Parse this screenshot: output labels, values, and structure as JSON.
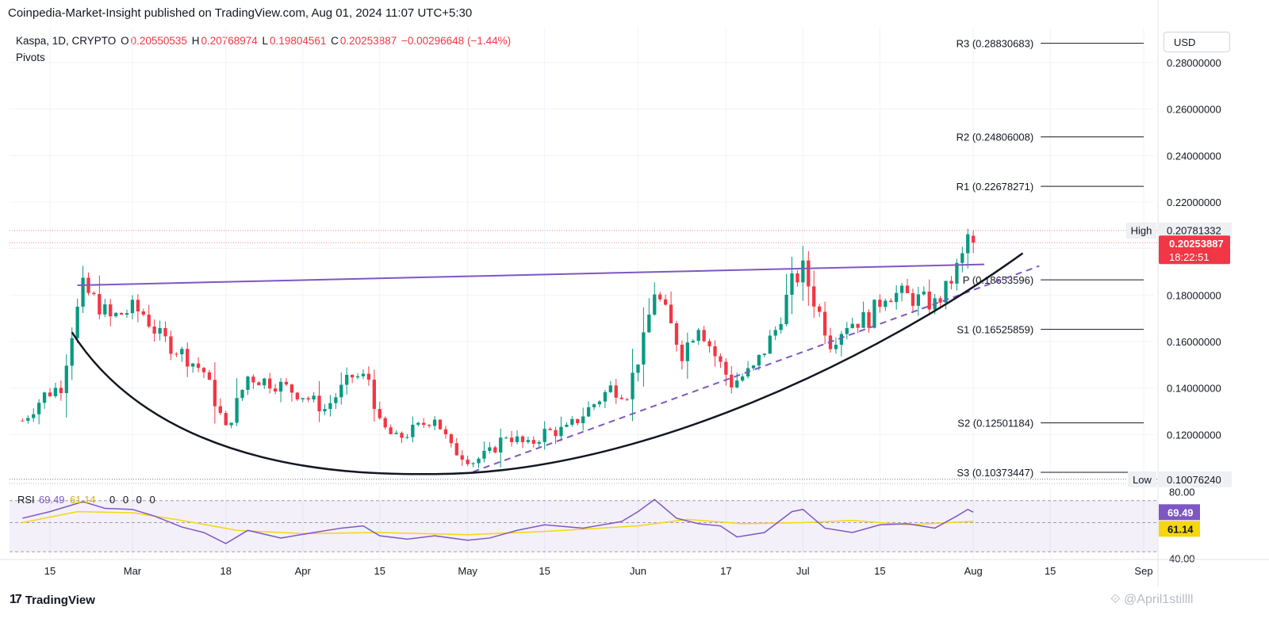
{
  "header": {
    "publisher_line": "Coinpedia-Market-Insight published on TradingView.com, Aug 01, 2024 11:07 UTC+5:30",
    "symbol": "Kaspa, 1D, CRYPTO",
    "ohlc": {
      "o_label": "O",
      "o_value": "0.20550535",
      "h_label": "H",
      "h_value": "0.20768974",
      "l_label": "L",
      "l_value": "0.19804561",
      "c_label": "C",
      "c_value": "0.20253887",
      "change": "−0.00296648 (−1.44%)"
    },
    "indicator": "Pivots",
    "currency": "USD"
  },
  "colors": {
    "up": "#089981",
    "down": "#f23645",
    "pivot_lines": "#131722",
    "channel": "#7e57c2",
    "curve": "#131722",
    "rsi": "#7e57c2",
    "rsi_ma": "#f5d60f",
    "price_badge": "#f23645"
  },
  "chart_data": {
    "type": "candlestick",
    "title": "Kaspa, 1D, CRYPTO",
    "ylim": [
      0.1,
      0.295
    ],
    "y_ticks": [
      "0.28000000",
      "0.26000000",
      "0.24000000",
      "0.22000000",
      "0.18000000",
      "0.16000000",
      "0.14000000",
      "0.12000000"
    ],
    "x_ticks": [
      "15",
      "Mar",
      "18",
      "Apr",
      "15",
      "May",
      "15",
      "Jun",
      "17",
      "Jul",
      "15",
      "Aug",
      "15",
      "Sep"
    ],
    "x_tick_dates": [
      "2024-02-15",
      "2024-03-01",
      "2024-03-18",
      "2024-04-01",
      "2024-04-15",
      "2024-05-01",
      "2024-05-15",
      "2024-06-01",
      "2024-06-17",
      "2024-07-01",
      "2024-07-15",
      "2024-08-01",
      "2024-08-15",
      "2024-09-01"
    ],
    "start_date": "2024-02-10",
    "end_date": "2024-08-01",
    "close_path": [
      [
        "2024-02-10",
        0.126
      ],
      [
        "2024-02-14",
        0.137
      ],
      [
        "2024-02-17",
        0.141
      ],
      [
        "2024-02-19",
        0.164
      ],
      [
        "2024-02-21",
        0.183
      ],
      [
        "2024-02-23",
        0.178
      ],
      [
        "2024-02-26",
        0.17
      ],
      [
        "2024-03-01",
        0.174
      ],
      [
        "2024-03-03",
        0.172
      ],
      [
        "2024-03-06",
        0.162
      ],
      [
        "2024-03-10",
        0.155
      ],
      [
        "2024-03-14",
        0.147
      ],
      [
        "2024-03-18",
        0.122
      ],
      [
        "2024-03-22",
        0.145
      ],
      [
        "2024-03-27",
        0.142
      ],
      [
        "2024-04-01",
        0.137
      ],
      [
        "2024-04-05",
        0.131
      ],
      [
        "2024-04-10",
        0.145
      ],
      [
        "2024-04-13",
        0.144
      ],
      [
        "2024-04-15",
        0.124
      ],
      [
        "2024-04-18",
        0.118
      ],
      [
        "2024-04-22",
        0.123
      ],
      [
        "2024-04-25",
        0.128
      ],
      [
        "2024-04-28",
        0.114
      ],
      [
        "2024-05-02",
        0.1085
      ],
      [
        "2024-05-05",
        0.112
      ],
      [
        "2024-05-08",
        0.12
      ],
      [
        "2024-05-12",
        0.115
      ],
      [
        "2024-05-15",
        0.121
      ],
      [
        "2024-05-19",
        0.122
      ],
      [
        "2024-05-23",
        0.131
      ],
      [
        "2024-05-27",
        0.14
      ],
      [
        "2024-05-30",
        0.138
      ],
      [
        "2024-06-02",
        0.16
      ],
      [
        "2024-06-04",
        0.182
      ],
      [
        "2024-06-06",
        0.172
      ],
      [
        "2024-06-09",
        0.155
      ],
      [
        "2024-06-12",
        0.168
      ],
      [
        "2024-06-15",
        0.154
      ],
      [
        "2024-06-18",
        0.142
      ],
      [
        "2024-06-22",
        0.148
      ],
      [
        "2024-06-26",
        0.165
      ],
      [
        "2024-06-29",
        0.185
      ],
      [
        "2024-07-01",
        0.191
      ],
      [
        "2024-07-03",
        0.178
      ],
      [
        "2024-07-06",
        0.16
      ],
      [
        "2024-07-09",
        0.168
      ],
      [
        "2024-07-13",
        0.17
      ],
      [
        "2024-07-16",
        0.181
      ],
      [
        "2024-07-19",
        0.18
      ],
      [
        "2024-07-22",
        0.178
      ],
      [
        "2024-07-25",
        0.176
      ],
      [
        "2024-07-27",
        0.182
      ],
      [
        "2024-07-30",
        0.196
      ],
      [
        "2024-07-31",
        0.2055
      ],
      [
        "2024-08-01",
        0.2025
      ]
    ],
    "last_candle": {
      "date": "2024-08-01",
      "open": 0.20550535,
      "high": 0.20768974,
      "low": 0.19804561,
      "close": 0.20253887
    },
    "pivots": [
      {
        "label": "R3 (0.28830683)",
        "value": 0.28830683
      },
      {
        "label": "R2 (0.24806008)",
        "value": 0.24806008
      },
      {
        "label": "R1 (0.22678271)",
        "value": 0.22678271
      },
      {
        "label": "P (0.18653596)",
        "value": 0.18653596
      },
      {
        "label": "S1 (0.16525859)",
        "value": 0.16525859
      },
      {
        "label": "S2 (0.12501184)",
        "value": 0.12501184
      },
      {
        "label": "S3 (0.10373447)",
        "value": 0.10373447
      }
    ],
    "pivots_start_date": "2024-08-01",
    "high_marker": {
      "label": "High",
      "value": 0.20781332,
      "value_label": "0.20781332"
    },
    "low_marker": {
      "label": "Low",
      "value": 0.1007624,
      "value_label": "0.10076240"
    },
    "last_price": {
      "value": 0.20253887,
      "label": "0.20253887",
      "countdown": "18:22:51"
    },
    "resistance_line": {
      "from": [
        "2024-02-20",
        0.1842
      ],
      "to": [
        "2024-08-03",
        0.1932
      ]
    },
    "support_line_dashed": {
      "from": [
        "2024-05-02",
        0.104
      ],
      "to": [
        "2024-08-13",
        0.1925
      ]
    },
    "cup_curve": {
      "from": [
        "2024-02-19",
        0.164
      ],
      "bottom": [
        "2024-04-25",
        0.103
      ],
      "to": [
        "2024-08-10",
        0.198
      ]
    },
    "rsi": {
      "label": "RSI",
      "value": 69.49,
      "value_label": "69.49",
      "ma": 61.14,
      "ma_label": "61.14",
      "zeros": "0 0 0 0",
      "levels": [
        80,
        60,
        40
      ],
      "level_labels": [
        "80.00",
        "40.00"
      ],
      "ylim": [
        33,
        87
      ],
      "path": [
        [
          "2024-02-10",
          64
        ],
        [
          "2024-02-15",
          70
        ],
        [
          "2024-02-19",
          76
        ],
        [
          "2024-02-21",
          79
        ],
        [
          "2024-02-25",
          73
        ],
        [
          "2024-03-01",
          72
        ],
        [
          "2024-03-05",
          66
        ],
        [
          "2024-03-10",
          56
        ],
        [
          "2024-03-14",
          51
        ],
        [
          "2024-03-18",
          41
        ],
        [
          "2024-03-22",
          53
        ],
        [
          "2024-03-28",
          46
        ],
        [
          "2024-04-03",
          51
        ],
        [
          "2024-04-08",
          55
        ],
        [
          "2024-04-12",
          57
        ],
        [
          "2024-04-15",
          48
        ],
        [
          "2024-04-20",
          45
        ],
        [
          "2024-04-25",
          48
        ],
        [
          "2024-05-01",
          44
        ],
        [
          "2024-05-05",
          46
        ],
        [
          "2024-05-10",
          53
        ],
        [
          "2024-05-15",
          58
        ],
        [
          "2024-05-22",
          55
        ],
        [
          "2024-05-29",
          61
        ],
        [
          "2024-06-01",
          70
        ],
        [
          "2024-06-04",
          81
        ],
        [
          "2024-06-08",
          64
        ],
        [
          "2024-06-12",
          59
        ],
        [
          "2024-06-16",
          57
        ],
        [
          "2024-06-19",
          47
        ],
        [
          "2024-06-24",
          51
        ],
        [
          "2024-06-29",
          70
        ],
        [
          "2024-07-01",
          72
        ],
        [
          "2024-07-05",
          55
        ],
        [
          "2024-07-10",
          51
        ],
        [
          "2024-07-15",
          58
        ],
        [
          "2024-07-20",
          59
        ],
        [
          "2024-07-25",
          55
        ],
        [
          "2024-07-29",
          66
        ],
        [
          "2024-07-31",
          72
        ],
        [
          "2024-08-01",
          69.49
        ]
      ],
      "ma_path": [
        [
          "2024-02-10",
          60
        ],
        [
          "2024-02-20",
          70
        ],
        [
          "2024-03-01",
          69
        ],
        [
          "2024-03-10",
          62
        ],
        [
          "2024-03-20",
          53
        ],
        [
          "2024-04-01",
          50
        ],
        [
          "2024-04-15",
          51
        ],
        [
          "2024-05-01",
          49
        ],
        [
          "2024-05-15",
          52
        ],
        [
          "2024-06-01",
          57
        ],
        [
          "2024-06-10",
          63
        ],
        [
          "2024-06-20",
          59
        ],
        [
          "2024-07-01",
          60
        ],
        [
          "2024-07-10",
          62
        ],
        [
          "2024-07-20",
          58
        ],
        [
          "2024-08-01",
          61.14
        ]
      ]
    }
  },
  "footer": {
    "brand": "TradingView",
    "watermark": "⟐ @April1stillll"
  }
}
